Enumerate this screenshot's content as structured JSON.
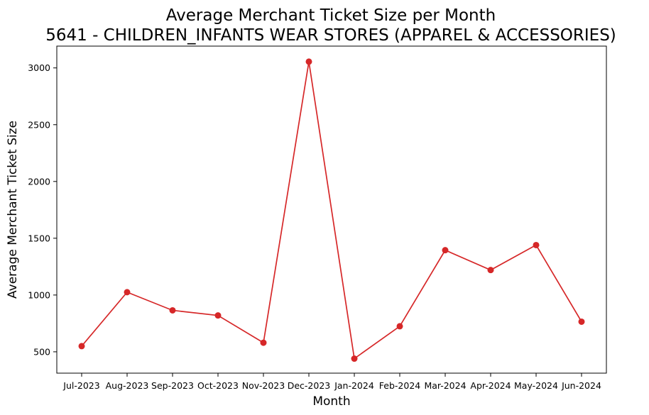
{
  "chart_data": {
    "type": "line",
    "title": "Average Merchant Ticket Size per Month\n5641 - CHILDREN_INFANTS WEAR STORES (APPAREL & ACCESSORIES)",
    "title_lines": [
      "Average Merchant Ticket Size per Month",
      "5641 - CHILDREN_INFANTS WEAR STORES (APPAREL & ACCESSORIES)"
    ],
    "xlabel": "Month",
    "ylabel": "Average Merchant Ticket Size",
    "categories": [
      "Jul-2023",
      "Aug-2023",
      "Sep-2023",
      "Oct-2023",
      "Nov-2023",
      "Dec-2023",
      "Jan-2024",
      "Feb-2024",
      "Mar-2024",
      "Apr-2024",
      "May-2024",
      "Jun-2024"
    ],
    "series": [
      {
        "values": [
          550,
          1025,
          865,
          820,
          580,
          3055,
          440,
          725,
          1395,
          1220,
          1440,
          765
        ],
        "color": "#d62728",
        "marker": "circle"
      }
    ],
    "ylim": [
      312,
      3192
    ],
    "yticks": [
      500,
      1000,
      1500,
      2000,
      2500,
      3000
    ],
    "grid": false,
    "legend": "none"
  }
}
